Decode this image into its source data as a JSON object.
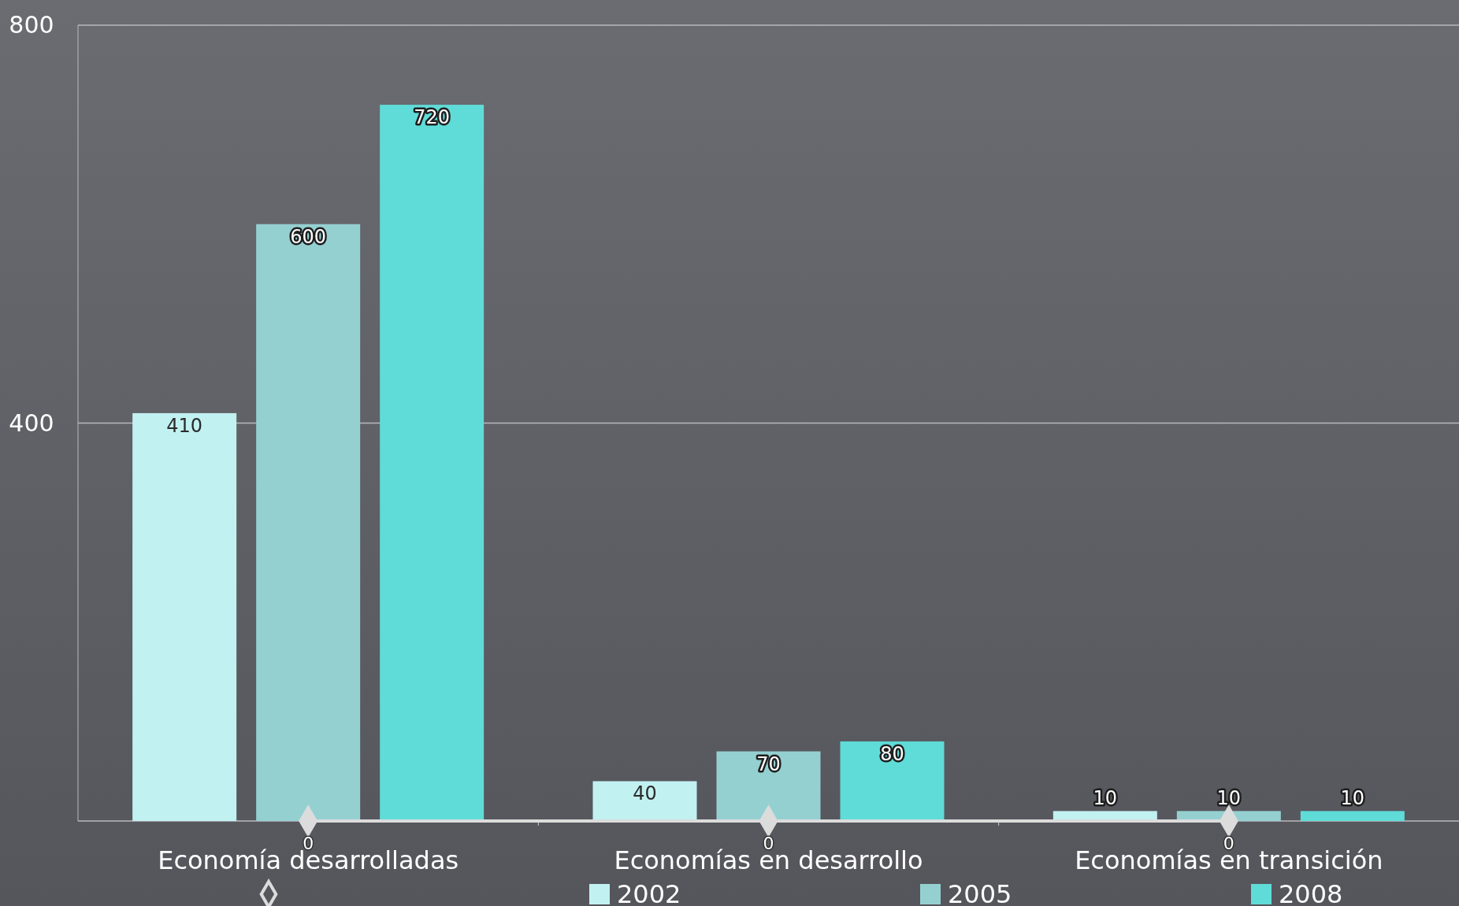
{
  "chart_data": {
    "type": "bar",
    "categories": [
      "Economía desarrolladas",
      "Economías en desarrollo",
      "Economías en transición"
    ],
    "series": [
      {
        "type": "line",
        "color": "#dcdcdc",
        "values": [
          0,
          0,
          0
        ],
        "marker": "diamond",
        "line_style": "solid"
      },
      {
        "name": "2002",
        "color": "#c2f1f1",
        "values": [
          410,
          40,
          10
        ]
      },
      {
        "name": "2005",
        "color": "#95d0d1",
        "values": [
          600,
          70,
          10
        ]
      },
      {
        "name": "2008",
        "color": "#5fdcd8",
        "values": [
          720,
          80,
          10
        ]
      }
    ],
    "ylim": [
      0,
      800
    ],
    "yticks": [
      {
        "value": 0,
        "label": null
      },
      400,
      800
    ],
    "grid": "y",
    "legend": "bottom",
    "data_labels": true
  }
}
